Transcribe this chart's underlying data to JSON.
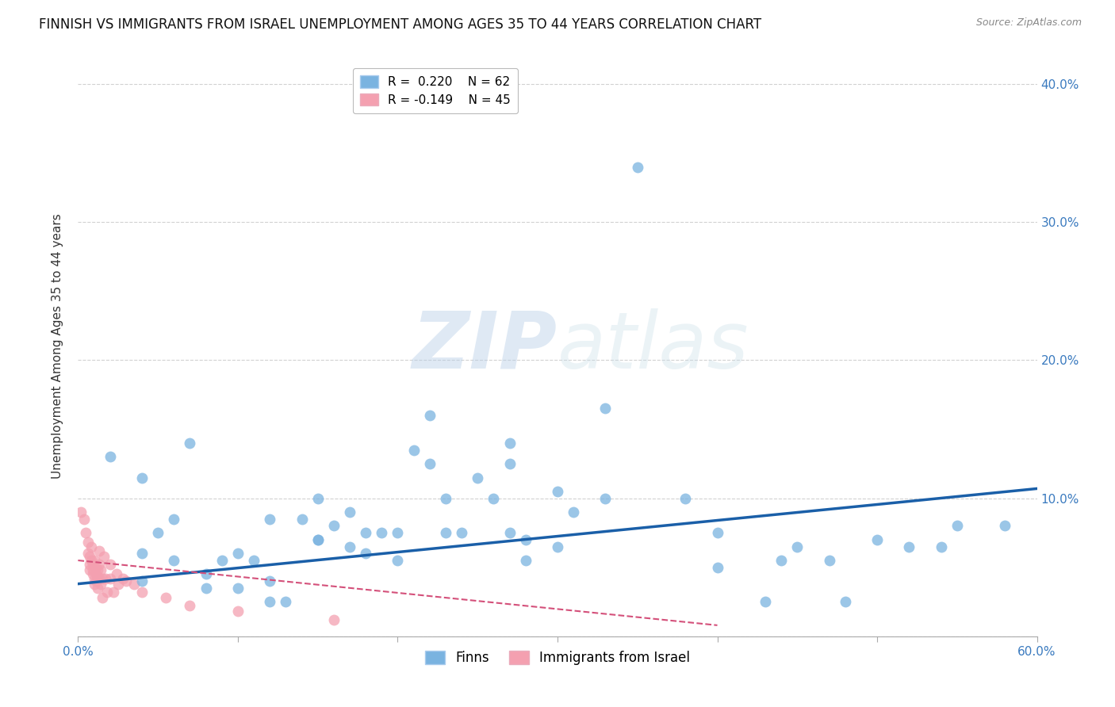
{
  "title": "FINNISH VS IMMIGRANTS FROM ISRAEL UNEMPLOYMENT AMONG AGES 35 TO 44 YEARS CORRELATION CHART",
  "source": "Source: ZipAtlas.com",
  "xlabel": "",
  "ylabel": "Unemployment Among Ages 35 to 44 years",
  "xlim": [
    0.0,
    0.6
  ],
  "ylim": [
    0.0,
    0.42
  ],
  "xticks": [
    0.0,
    0.1,
    0.2,
    0.3,
    0.4,
    0.5,
    0.6
  ],
  "yticks": [
    0.0,
    0.1,
    0.2,
    0.3,
    0.4
  ],
  "ytick_labels_right": [
    "",
    "10.0%",
    "20.0%",
    "30.0%",
    "40.0%"
  ],
  "xtick_labels": [
    "0.0%",
    "",
    "",
    "",
    "",
    "",
    "60.0%"
  ],
  "legend_entries": [
    {
      "label": "R =  0.220    N = 62",
      "color": "#7ab3e0"
    },
    {
      "label": "R = -0.149    N = 45",
      "color": "#f4a0b0"
    }
  ],
  "watermark_zip": "ZIP",
  "watermark_atlas": "atlas",
  "finns_color": "#7ab3e0",
  "israel_color": "#f4a0b0",
  "finns_line_color": "#1a5fa8",
  "israel_line_color": "#d4507a",
  "finns_scatter": [
    [
      0.02,
      0.13
    ],
    [
      0.04,
      0.115
    ],
    [
      0.04,
      0.06
    ],
    [
      0.04,
      0.04
    ],
    [
      0.05,
      0.075
    ],
    [
      0.06,
      0.085
    ],
    [
      0.06,
      0.055
    ],
    [
      0.07,
      0.14
    ],
    [
      0.08,
      0.035
    ],
    [
      0.08,
      0.045
    ],
    [
      0.09,
      0.055
    ],
    [
      0.1,
      0.06
    ],
    [
      0.1,
      0.035
    ],
    [
      0.11,
      0.055
    ],
    [
      0.12,
      0.085
    ],
    [
      0.12,
      0.04
    ],
    [
      0.12,
      0.025
    ],
    [
      0.13,
      0.025
    ],
    [
      0.14,
      0.085
    ],
    [
      0.15,
      0.1
    ],
    [
      0.15,
      0.07
    ],
    [
      0.15,
      0.07
    ],
    [
      0.16,
      0.08
    ],
    [
      0.17,
      0.09
    ],
    [
      0.17,
      0.065
    ],
    [
      0.18,
      0.075
    ],
    [
      0.18,
      0.06
    ],
    [
      0.19,
      0.075
    ],
    [
      0.2,
      0.055
    ],
    [
      0.2,
      0.075
    ],
    [
      0.21,
      0.135
    ],
    [
      0.22,
      0.16
    ],
    [
      0.22,
      0.125
    ],
    [
      0.23,
      0.1
    ],
    [
      0.23,
      0.075
    ],
    [
      0.24,
      0.075
    ],
    [
      0.25,
      0.115
    ],
    [
      0.26,
      0.1
    ],
    [
      0.27,
      0.14
    ],
    [
      0.27,
      0.125
    ],
    [
      0.27,
      0.075
    ],
    [
      0.28,
      0.07
    ],
    [
      0.28,
      0.055
    ],
    [
      0.3,
      0.105
    ],
    [
      0.3,
      0.065
    ],
    [
      0.31,
      0.09
    ],
    [
      0.33,
      0.165
    ],
    [
      0.33,
      0.1
    ],
    [
      0.35,
      0.34
    ],
    [
      0.38,
      0.1
    ],
    [
      0.4,
      0.075
    ],
    [
      0.4,
      0.05
    ],
    [
      0.43,
      0.025
    ],
    [
      0.44,
      0.055
    ],
    [
      0.45,
      0.065
    ],
    [
      0.47,
      0.055
    ],
    [
      0.48,
      0.025
    ],
    [
      0.5,
      0.07
    ],
    [
      0.52,
      0.065
    ],
    [
      0.54,
      0.065
    ],
    [
      0.55,
      0.08
    ],
    [
      0.58,
      0.08
    ]
  ],
  "israel_scatter": [
    [
      0.002,
      0.09
    ],
    [
      0.004,
      0.085
    ],
    [
      0.005,
      0.075
    ],
    [
      0.006,
      0.068
    ],
    [
      0.006,
      0.06
    ],
    [
      0.007,
      0.058
    ],
    [
      0.007,
      0.052
    ],
    [
      0.007,
      0.048
    ],
    [
      0.008,
      0.065
    ],
    [
      0.008,
      0.055
    ],
    [
      0.009,
      0.052
    ],
    [
      0.009,
      0.048
    ],
    [
      0.009,
      0.045
    ],
    [
      0.01,
      0.042
    ],
    [
      0.01,
      0.038
    ],
    [
      0.01,
      0.055
    ],
    [
      0.011,
      0.05
    ],
    [
      0.011,
      0.045
    ],
    [
      0.011,
      0.04
    ],
    [
      0.012,
      0.048
    ],
    [
      0.012,
      0.043
    ],
    [
      0.012,
      0.035
    ],
    [
      0.013,
      0.062
    ],
    [
      0.013,
      0.052
    ],
    [
      0.013,
      0.042
    ],
    [
      0.014,
      0.038
    ],
    [
      0.014,
      0.048
    ],
    [
      0.015,
      0.042
    ],
    [
      0.015,
      0.028
    ],
    [
      0.016,
      0.058
    ],
    [
      0.017,
      0.042
    ],
    [
      0.018,
      0.032
    ],
    [
      0.02,
      0.052
    ],
    [
      0.02,
      0.042
    ],
    [
      0.022,
      0.032
    ],
    [
      0.024,
      0.045
    ],
    [
      0.025,
      0.038
    ],
    [
      0.028,
      0.042
    ],
    [
      0.03,
      0.04
    ],
    [
      0.035,
      0.038
    ],
    [
      0.04,
      0.032
    ],
    [
      0.055,
      0.028
    ],
    [
      0.07,
      0.022
    ],
    [
      0.1,
      0.018
    ],
    [
      0.16,
      0.012
    ]
  ],
  "finn_line_x0": 0.0,
  "finn_line_y0": 0.038,
  "finn_line_x1": 0.6,
  "finn_line_y1": 0.107,
  "israel_line_x0": 0.0,
  "israel_line_y0": 0.055,
  "israel_line_x1": 0.4,
  "israel_line_y1": 0.008,
  "grid_color": "#cccccc",
  "background_color": "#ffffff",
  "title_fontsize": 12,
  "axis_label_fontsize": 11,
  "tick_fontsize": 11,
  "legend_fontsize": 11
}
